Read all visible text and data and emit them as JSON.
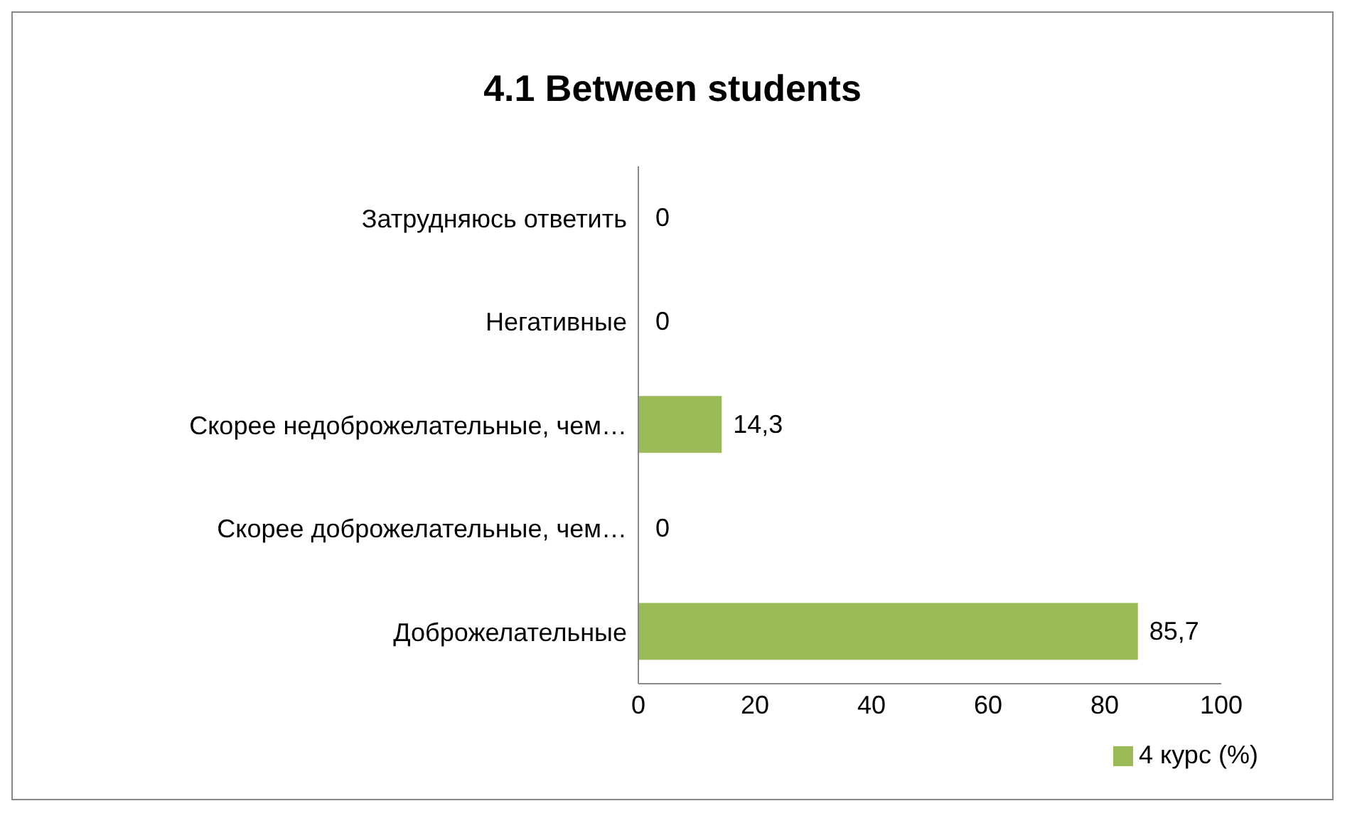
{
  "chart_data": {
    "type": "bar",
    "orientation": "horizontal",
    "title": "4.1 Between students",
    "categories": [
      "Затрудняюсь ответить",
      "Негативные",
      "Скорее недоброжелательные, чем…",
      "Скорее доброжелательные, чем…",
      "Доброжелательные"
    ],
    "series": [
      {
        "name": "4 курс (%)",
        "color": "#9bbb59",
        "values": [
          0,
          0,
          14.3,
          0,
          85.7
        ],
        "value_labels": [
          "0",
          "0",
          "14,3",
          "0",
          "85,7"
        ]
      }
    ],
    "xlim": [
      0,
      100
    ],
    "xticks": [
      0,
      20,
      40,
      60,
      80,
      100
    ],
    "grid": false,
    "legend": "bottom"
  }
}
